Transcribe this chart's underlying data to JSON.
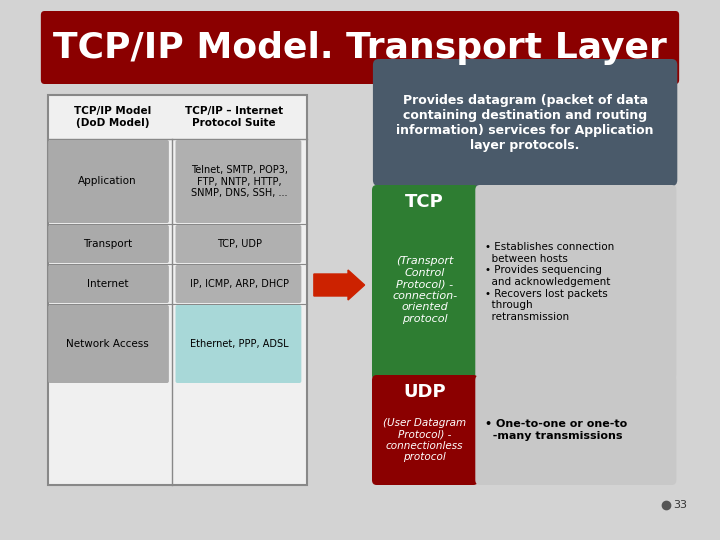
{
  "title": "TCP/IP Model. Transport Layer",
  "title_bg": "#8B0000",
  "title_color": "#FFFFFF",
  "slide_bg": "#D3D3D3",
  "left_table": {
    "header1": "TCP/IP Model\n(DoD Model)",
    "header2": "TCP/IP – Internet\nProtocol Suite",
    "rows": [
      [
        "Application",
        "Telnet, SMTP, POP3,\nFTP, NNTP, HTTP,\nSNMP, DNS, SSH, ..."
      ],
      [
        "Transport",
        "TCP, UDP"
      ],
      [
        "Internet",
        "IP, ICMP, ARP, DHCP"
      ],
      [
        "Network Access",
        "Ethernet, PPP, ADSL"
      ]
    ],
    "row_colors": [
      "#B0B0B0",
      "#B0B0B0",
      "#B0B0B0",
      "#A8D8D8"
    ]
  },
  "top_box": {
    "text": "Provides datagram (packet of data\ncontaining destination and routing\ninformation) services for Application\nlayer protocols.",
    "bg": "#4A5A6A",
    "color": "#FFFFFF"
  },
  "tcp_box": {
    "title": "TCP",
    "body": "(Transport\nControl\nProtocol) -\nconnection-\noriented\nprotocol",
    "bg": "#2E7D32",
    "color": "#FFFFFF"
  },
  "tcp_bullets": "• Establishes connection\n  between hosts\n• Provides sequencing\n  and acknowledgement\n• Recovers lost packets\n  through\n  retransmission",
  "udp_box": {
    "title": "UDP",
    "body": "(User Datagram\nProtocol) -\nconnectionless\nprotocol",
    "bg": "#8B0000",
    "color": "#FFFFFF"
  },
  "udp_bullet": "• One-to-one or one-to\n  -many transmissions",
  "arrow_color": "#CC2200",
  "page_num": "33"
}
